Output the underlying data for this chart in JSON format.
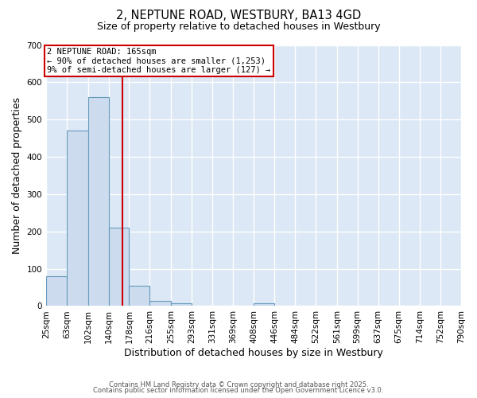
{
  "title1": "2, NEPTUNE ROAD, WESTBURY, BA13 4GD",
  "title2": "Size of property relative to detached houses in Westbury",
  "xlabel": "Distribution of detached houses by size in Westbury",
  "ylabel": "Number of detached properties",
  "bin_labels": [
    "25sqm",
    "63sqm",
    "102sqm",
    "140sqm",
    "178sqm",
    "216sqm",
    "255sqm",
    "293sqm",
    "331sqm",
    "369sqm",
    "408sqm",
    "446sqm",
    "484sqm",
    "522sqm",
    "561sqm",
    "599sqm",
    "637sqm",
    "675sqm",
    "714sqm",
    "752sqm",
    "790sqm"
  ],
  "bin_edges": [
    25,
    63,
    102,
    140,
    178,
    216,
    255,
    293,
    331,
    369,
    408,
    446,
    484,
    522,
    561,
    599,
    637,
    675,
    714,
    752,
    790
  ],
  "bar_values": [
    80,
    470,
    560,
    210,
    55,
    13,
    8,
    0,
    0,
    0,
    8,
    0,
    0,
    0,
    0,
    0,
    0,
    0,
    0,
    0
  ],
  "bar_color": "#ccdcee",
  "bar_edge_color": "#6699bb",
  "red_line_x": 165,
  "ylim": [
    0,
    700
  ],
  "yticks": [
    0,
    100,
    200,
    300,
    400,
    500,
    600,
    700
  ],
  "annotation_line1": "2 NEPTUNE ROAD: 165sqm",
  "annotation_line2": "← 90% of detached houses are smaller (1,253)",
  "annotation_line3": "9% of semi-detached houses are larger (127) →",
  "annotation_box_color": "white",
  "annotation_border_color": "#cc0000",
  "footer1": "Contains HM Land Registry data © Crown copyright and database right 2025.",
  "footer2": "Contains public sector information licensed under the Open Government Licence v3.0.",
  "bg_color": "#dce8f5",
  "grid_color": "white",
  "outer_bg": "white"
}
